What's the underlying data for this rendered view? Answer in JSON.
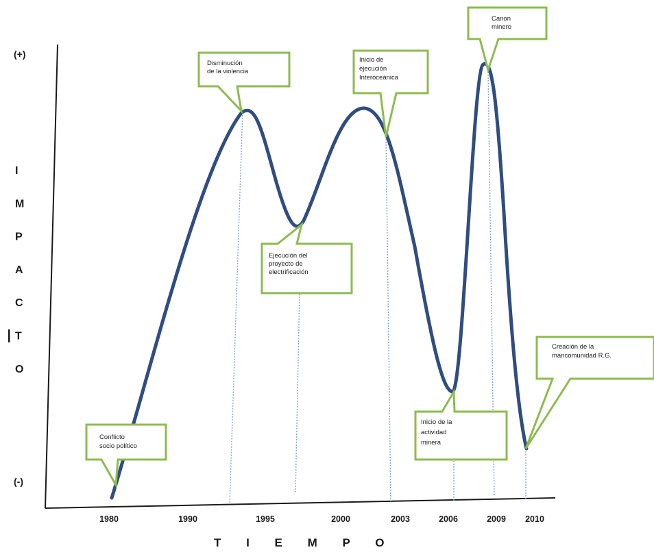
{
  "chart_data": {
    "type": "line",
    "title": "",
    "xlabel": "T I E M P O",
    "ylabel": "IMPACTO",
    "y_top_label": "(+)",
    "y_bottom_label": "(-)",
    "categories": [
      "1980",
      "1990",
      "1995",
      "2000",
      "2003",
      "2006",
      "2009",
      "2010"
    ],
    "grid": false,
    "legend": "none",
    "line_color": "#2f4d80",
    "callout_color": "#8dbb4f",
    "guide_color": "#7fa6d9",
    "annotations": [
      {
        "id": "a1",
        "lines": [
          "Conflicto",
          "socio político"
        ]
      },
      {
        "id": "a2",
        "lines": [
          "Disminución",
          "de la violencia"
        ]
      },
      {
        "id": "a3",
        "lines": [
          "Ejecución del",
          "proyecto de",
          "electrificación"
        ]
      },
      {
        "id": "a4",
        "lines": [
          "Inicio de",
          "ejecución",
          "Interoceánica"
        ]
      },
      {
        "id": "a5",
        "lines": [
          "Inicio de  la",
          "actividad",
          "minera"
        ]
      },
      {
        "id": "a6",
        "lines": [
          "Canon",
          "minero"
        ]
      },
      {
        "id": "a7",
        "lines": [
          "Creación de la",
          "mancomunidad  R.G."
        ]
      }
    ]
  }
}
